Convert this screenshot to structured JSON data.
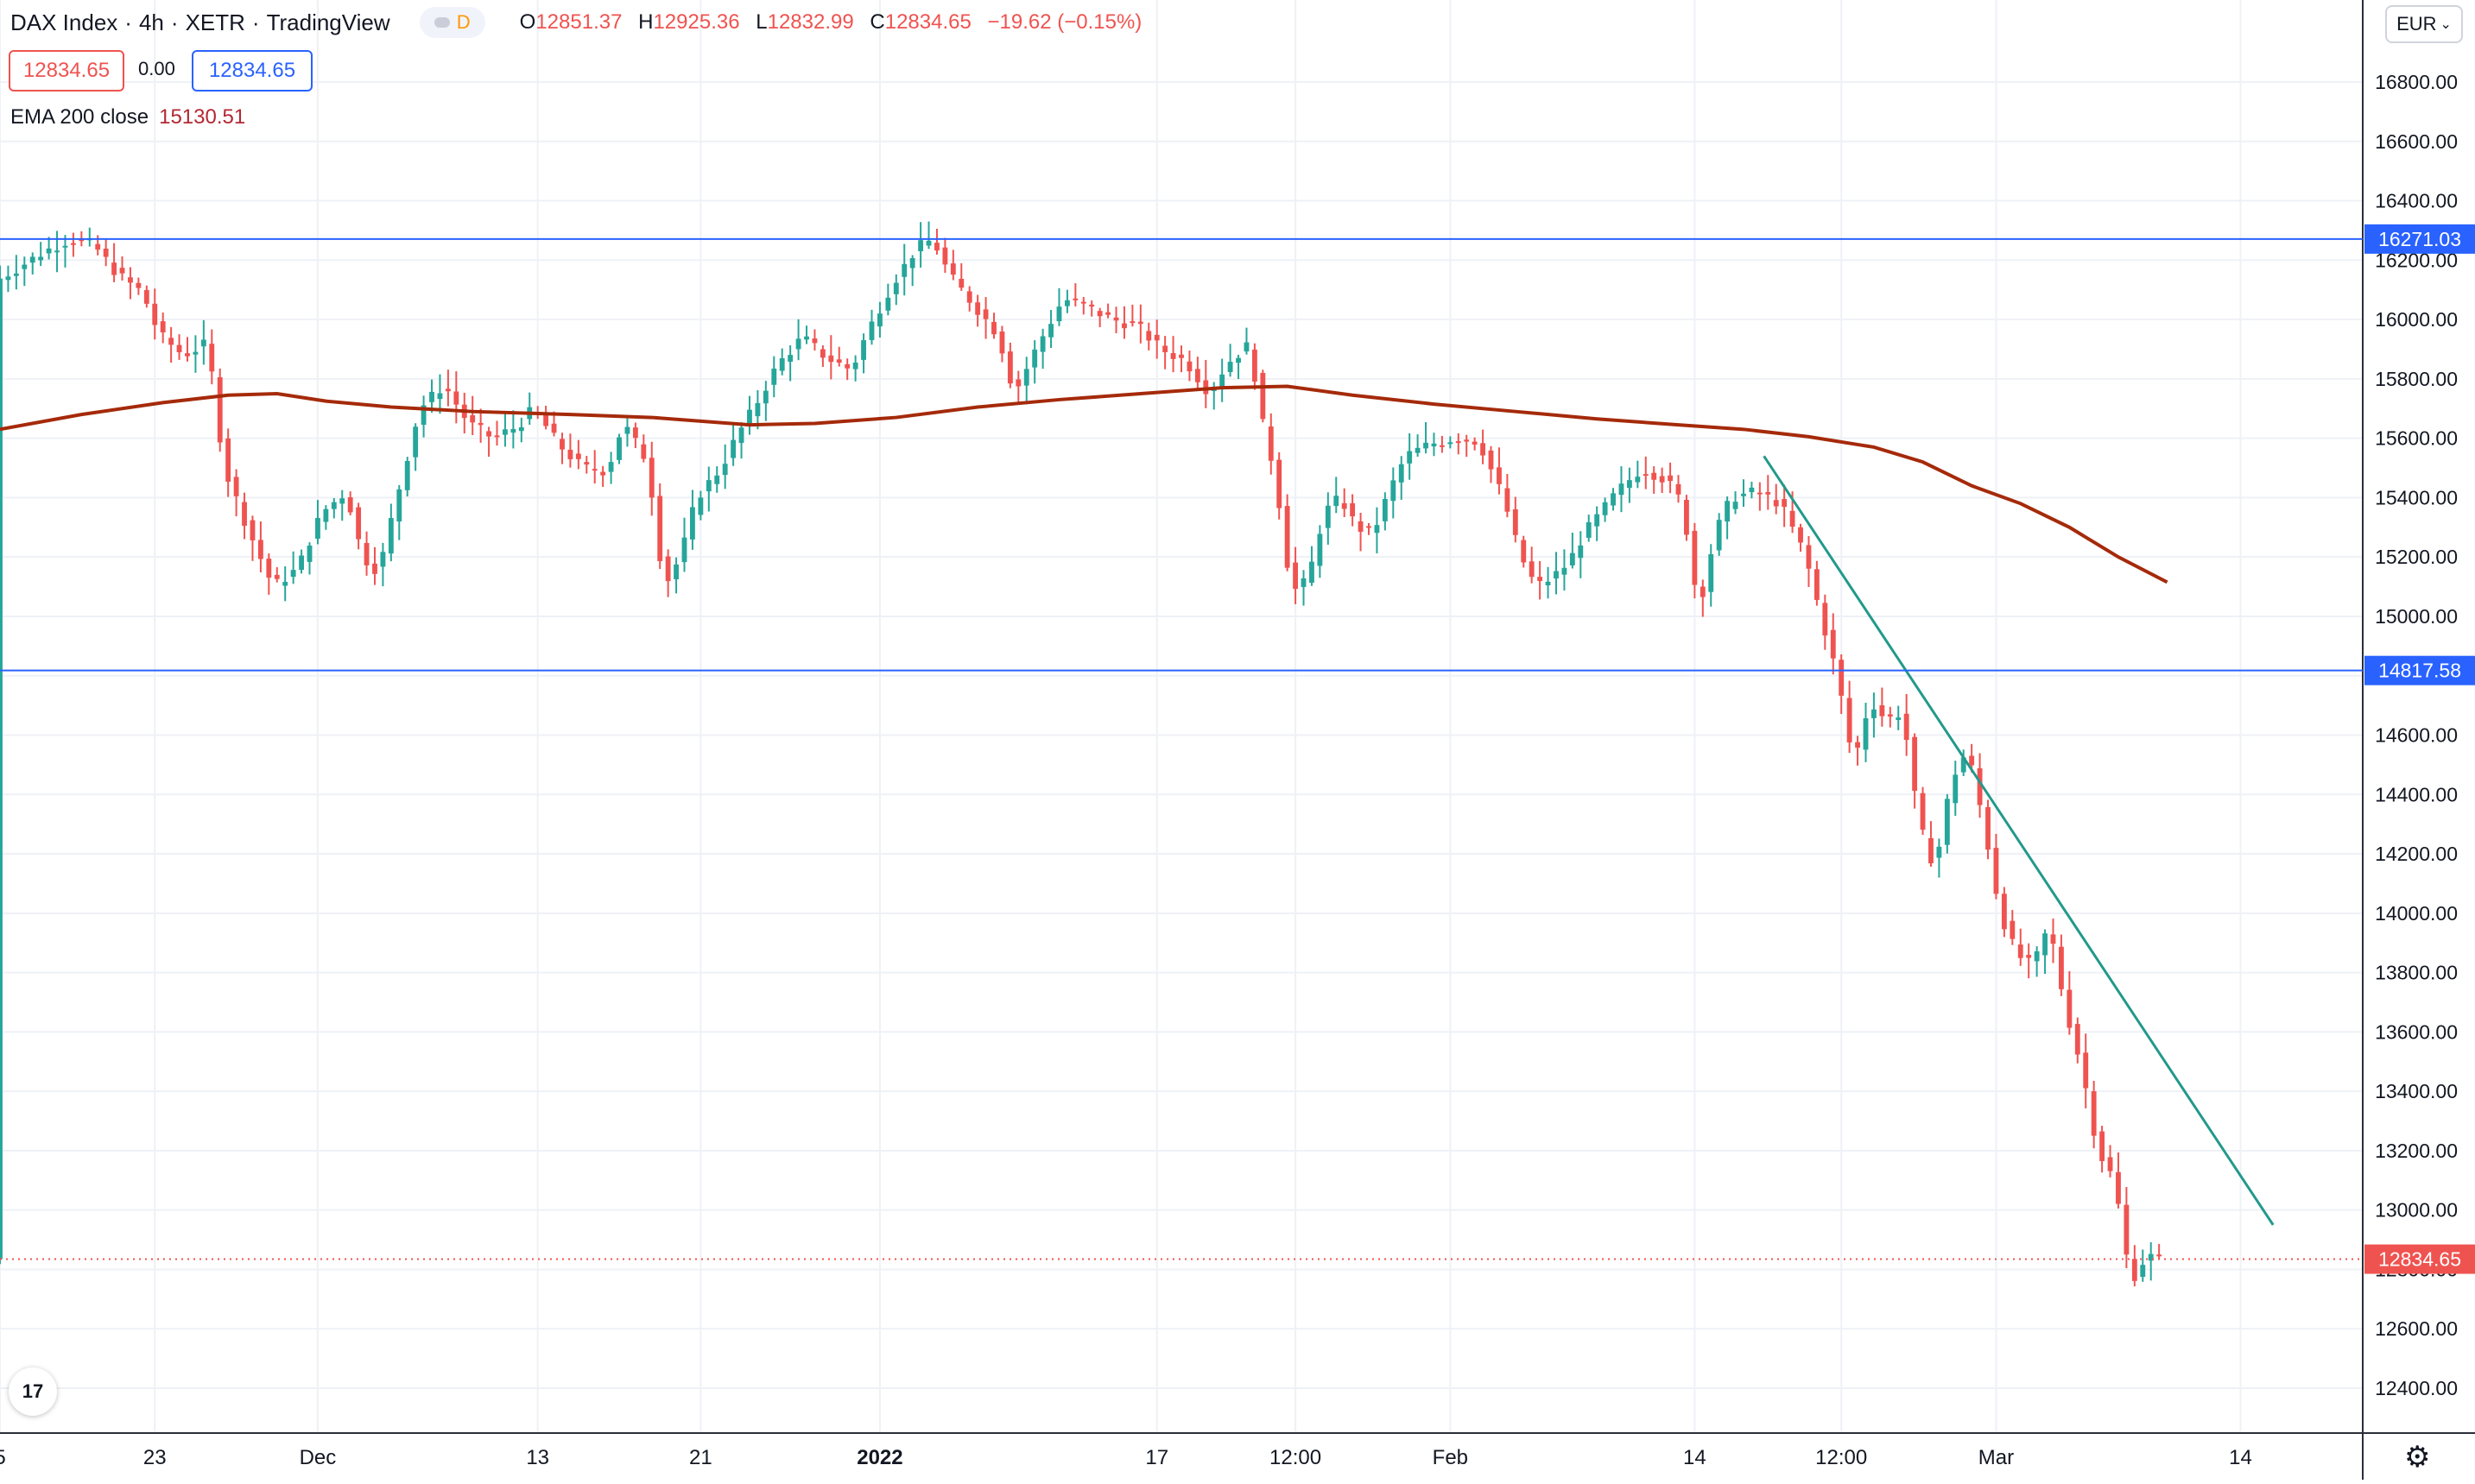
{
  "header": {
    "symbol": "DAX Index",
    "interval": "4h",
    "exchange": "XETR",
    "source": "TradingView",
    "separator": "·",
    "d_badge": "D",
    "ohlc": [
      {
        "k": "O",
        "v": "12851.37"
      },
      {
        "k": "H",
        "v": "12925.36"
      },
      {
        "k": "L",
        "v": "12832.99"
      },
      {
        "k": "C",
        "v": "12834.65"
      },
      {
        "k": "",
        "v": "−19.62 (−0.15%)"
      }
    ],
    "bid": "12834.65",
    "spread": "0.00",
    "ask": "12834.65"
  },
  "indicator": {
    "label": "EMA 200 close",
    "value": "15130.51"
  },
  "toolbar": {
    "currency": "EUR",
    "logo": "17",
    "settings_icon": "gear-icon"
  },
  "colors": {
    "up": "#26a69a",
    "down": "#ef5350",
    "ema": "#a52a0a",
    "hline": "#2962ff",
    "trend": "#22998b",
    "grid": "#eef1f6",
    "axis_text": "#131722"
  },
  "chart_data": {
    "type": "candlestick",
    "title": "DAX Index · 4h · XETR",
    "ylim": [
      12300,
      16850
    ],
    "y_ticks": [
      12400,
      12600,
      12800,
      13000,
      13200,
      13400,
      13600,
      13800,
      14000,
      14200,
      14400,
      14600,
      14800,
      15000,
      15200,
      15400,
      15600,
      15800,
      16000,
      16200,
      16400,
      16600,
      16800
    ],
    "x_range": [
      0,
      290
    ],
    "x_ticks": [
      {
        "i": 0,
        "label": "5"
      },
      {
        "i": 19,
        "label": "23"
      },
      {
        "i": 39,
        "label": "Dec"
      },
      {
        "i": 66,
        "label": "13"
      },
      {
        "i": 86,
        "label": "21"
      },
      {
        "i": 108,
        "label": "2022",
        "bold": true
      },
      {
        "i": 142,
        "label": "17"
      },
      {
        "i": 159,
        "label": "12:00"
      },
      {
        "i": 178,
        "label": "Feb"
      },
      {
        "i": 208,
        "label": "14"
      },
      {
        "i": 226,
        "label": "12:00"
      },
      {
        "i": 245,
        "label": "Mar"
      },
      {
        "i": 275,
        "label": "14"
      }
    ],
    "horizontal_lines": [
      {
        "price": 16271.03,
        "label": "16271.03"
      },
      {
        "price": 14817.58,
        "label": "14817.58"
      }
    ],
    "last_price": {
      "price": 12834.65,
      "label": "12834.65"
    },
    "trendline": [
      {
        "i": 216.5,
        "price": 15540
      },
      {
        "i": 279,
        "price": 12950
      }
    ],
    "ema": {
      "name": "EMA 200 close",
      "points": [
        [
          0,
          15630
        ],
        [
          10,
          15680
        ],
        [
          20,
          15720
        ],
        [
          28,
          15745
        ],
        [
          34,
          15750
        ],
        [
          40,
          15725
        ],
        [
          48,
          15705
        ],
        [
          58,
          15690
        ],
        [
          70,
          15680
        ],
        [
          80,
          15670
        ],
        [
          92,
          15645
        ],
        [
          100,
          15650
        ],
        [
          110,
          15670
        ],
        [
          120,
          15705
        ],
        [
          130,
          15730
        ],
        [
          140,
          15750
        ],
        [
          150,
          15770
        ],
        [
          158,
          15775
        ],
        [
          166,
          15745
        ],
        [
          176,
          15715
        ],
        [
          186,
          15690
        ],
        [
          196,
          15665
        ],
        [
          206,
          15645
        ],
        [
          214,
          15630
        ],
        [
          222,
          15605
        ],
        [
          230,
          15570
        ],
        [
          236,
          15520
        ],
        [
          242,
          15440
        ],
        [
          248,
          15380
        ],
        [
          254,
          15300
        ],
        [
          260,
          15200
        ],
        [
          266,
          15115
        ]
      ]
    },
    "anchors": [
      [
        0,
        16130
      ],
      [
        3,
        16180
      ],
      [
        6,
        16230
      ],
      [
        9,
        16270
      ],
      [
        12,
        16250
      ],
      [
        15,
        16150
      ],
      [
        18,
        16090
      ],
      [
        20,
        15950
      ],
      [
        23,
        15880
      ],
      [
        26,
        15920
      ],
      [
        28,
        15500
      ],
      [
        31,
        15290
      ],
      [
        34,
        15100
      ],
      [
        37,
        15160
      ],
      [
        40,
        15350
      ],
      [
        43,
        15420
      ],
      [
        45,
        15200
      ],
      [
        47,
        15150
      ],
      [
        49,
        15380
      ],
      [
        52,
        15700
      ],
      [
        55,
        15780
      ],
      [
        58,
        15650
      ],
      [
        61,
        15600
      ],
      [
        64,
        15640
      ],
      [
        66,
        15700
      ],
      [
        69,
        15580
      ],
      [
        72,
        15500
      ],
      [
        75,
        15490
      ],
      [
        77,
        15650
      ],
      [
        80,
        15520
      ],
      [
        82,
        15100
      ],
      [
        84,
        15200
      ],
      [
        86,
        15400
      ],
      [
        89,
        15500
      ],
      [
        91,
        15610
      ],
      [
        93,
        15700
      ],
      [
        96,
        15850
      ],
      [
        99,
        15940
      ],
      [
        102,
        15870
      ],
      [
        105,
        15830
      ],
      [
        107,
        15960
      ],
      [
        110,
        16120
      ],
      [
        113,
        16240
      ],
      [
        115,
        16270
      ],
      [
        117,
        16150
      ],
      [
        120,
        16050
      ],
      [
        123,
        15950
      ],
      [
        125,
        15750
      ],
      [
        128,
        15920
      ],
      [
        131,
        16070
      ],
      [
        134,
        16040
      ],
      [
        137,
        16000
      ],
      [
        140,
        15980
      ],
      [
        143,
        15900
      ],
      [
        146,
        15860
      ],
      [
        149,
        15750
      ],
      [
        151,
        15850
      ],
      [
        154,
        15920
      ],
      [
        155,
        15700
      ],
      [
        157,
        15480
      ],
      [
        159,
        15080
      ],
      [
        161,
        15120
      ],
      [
        163,
        15350
      ],
      [
        165,
        15400
      ],
      [
        167,
        15300
      ],
      [
        169,
        15280
      ],
      [
        171,
        15420
      ],
      [
        173,
        15540
      ],
      [
        176,
        15580
      ],
      [
        179,
        15600
      ],
      [
        182,
        15590
      ],
      [
        185,
        15400
      ],
      [
        187,
        15210
      ],
      [
        189,
        15100
      ],
      [
        191,
        15130
      ],
      [
        193,
        15180
      ],
      [
        195,
        15280
      ],
      [
        197,
        15350
      ],
      [
        199,
        15420
      ],
      [
        202,
        15500
      ],
      [
        205,
        15460
      ],
      [
        207,
        15380
      ],
      [
        209,
        15020
      ],
      [
        211,
        15280
      ],
      [
        213,
        15400
      ],
      [
        216,
        15420
      ],
      [
        219,
        15380
      ],
      [
        222,
        15210
      ],
      [
        224,
        15000
      ],
      [
        226,
        14800
      ],
      [
        228,
        14500
      ],
      [
        230,
        14720
      ],
      [
        232,
        14650
      ],
      [
        234,
        14680
      ],
      [
        236,
        14300
      ],
      [
        238,
        14150
      ],
      [
        240,
        14450
      ],
      [
        242,
        14550
      ],
      [
        244,
        14300
      ],
      [
        246,
        14000
      ],
      [
        248,
        13860
      ],
      [
        250,
        13820
      ],
      [
        252,
        13960
      ],
      [
        254,
        13680
      ],
      [
        256,
        13480
      ],
      [
        258,
        13200
      ],
      [
        260,
        13100
      ],
      [
        262,
        12760
      ],
      [
        263,
        12800
      ],
      [
        264,
        12850
      ],
      [
        265,
        12835
      ]
    ]
  }
}
